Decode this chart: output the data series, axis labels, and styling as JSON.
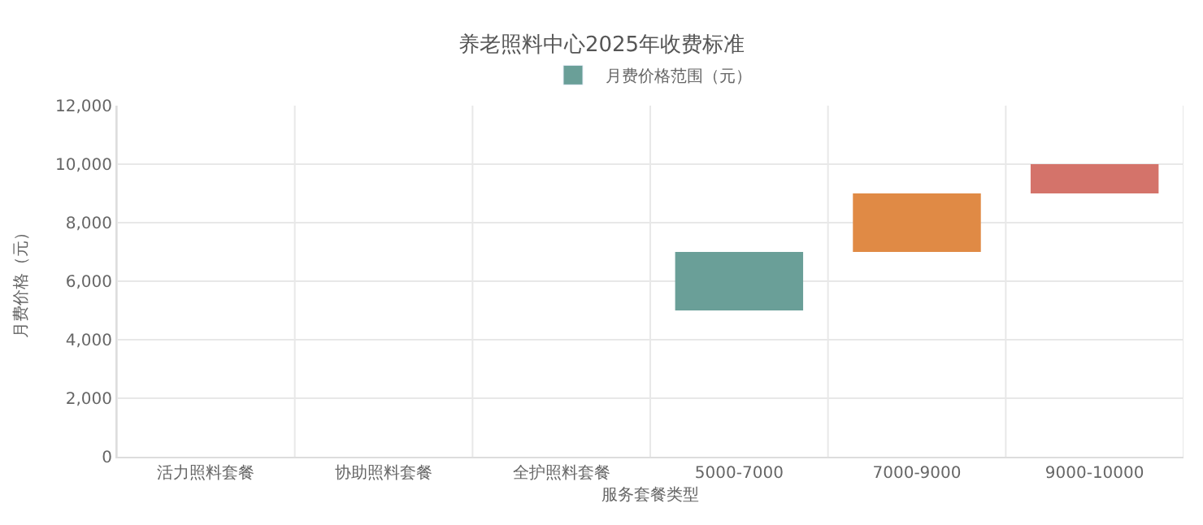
{
  "chart_data": {
    "type": "bar",
    "title": "养老照料中心2025年收费标准",
    "xlabel": "服务套餐类型",
    "ylabel": "月费价格（元）",
    "categories": [
      "活力照料套餐",
      "协助照料套餐",
      "全护照料套餐",
      "5000-7000",
      "7000-9000",
      "9000-10000"
    ],
    "series": [
      {
        "name": "月费价格范围（元）",
        "color": "#6a9f98",
        "colors": [
          "#6a9f98",
          "#6a9f98",
          "#6a9f98",
          "#6a9f98",
          "#e08a45",
          "#d4736a"
        ],
        "values": [
          null,
          null,
          null,
          2000,
          2000,
          1000
        ],
        "base": [
          null,
          null,
          null,
          5000,
          7000,
          9000
        ]
      }
    ],
    "ylim": [
      0,
      12000
    ],
    "yticks": [
      {
        "value": 0,
        "label": "0"
      },
      {
        "value": 2000,
        "label": "2,000"
      },
      {
        "value": 4000,
        "label": "4,000"
      },
      {
        "value": 6000,
        "label": "6,000"
      },
      {
        "value": 8000,
        "label": "8,000"
      },
      {
        "value": 10000,
        "label": "10,000"
      },
      {
        "value": 12000,
        "label": "12,000"
      }
    ],
    "grid": true,
    "legend": "top"
  }
}
